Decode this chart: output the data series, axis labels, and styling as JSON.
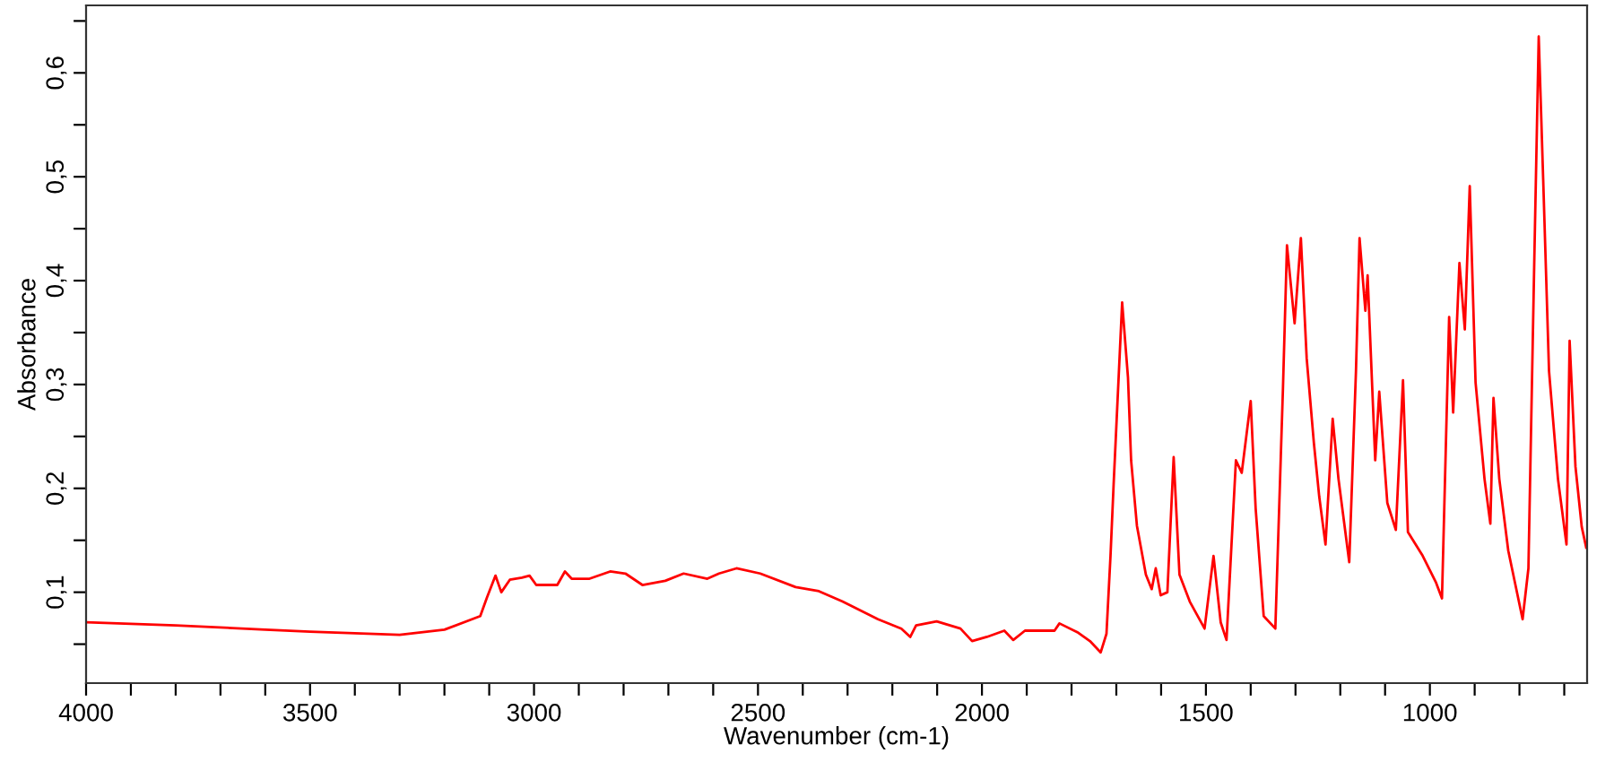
{
  "chart_data": {
    "type": "line",
    "xlabel": "Wavenumber (cm-1)",
    "ylabel": "Absorbance",
    "grid": false,
    "legend": false,
    "marker": "none",
    "line_style": "solid",
    "xlim": [
      4000,
      649
    ],
    "ylim": [
      0.0125,
      0.665
    ],
    "xticks": [
      4000,
      {
        "value": 3900,
        "label": null
      },
      {
        "value": 3800,
        "label": null
      },
      {
        "value": 3700,
        "label": null
      },
      {
        "value": 3600,
        "label": null
      },
      3500,
      {
        "value": 3400,
        "label": null
      },
      {
        "value": 3300,
        "label": null
      },
      {
        "value": 3200,
        "label": null
      },
      {
        "value": 3100,
        "label": null
      },
      3000,
      {
        "value": 2900,
        "label": null
      },
      {
        "value": 2800,
        "label": null
      },
      {
        "value": 2700,
        "label": null
      },
      {
        "value": 2600,
        "label": null
      },
      2500,
      {
        "value": 2400,
        "label": null
      },
      {
        "value": 2300,
        "label": null
      },
      {
        "value": 2200,
        "label": null
      },
      {
        "value": 2100,
        "label": null
      },
      2000,
      {
        "value": 1900,
        "label": null
      },
      {
        "value": 1800,
        "label": null
      },
      {
        "value": 1700,
        "label": null
      },
      {
        "value": 1600,
        "label": null
      },
      1500,
      {
        "value": 1400,
        "label": null
      },
      {
        "value": 1300,
        "label": null
      },
      {
        "value": 1200,
        "label": null
      },
      {
        "value": 1100,
        "label": null
      },
      1000,
      {
        "value": 900,
        "label": null
      },
      {
        "value": 800,
        "label": null
      },
      {
        "value": 700,
        "label": null
      }
    ],
    "yticks": [
      {
        "value": 0.05,
        "label": null
      },
      {
        "value": 0.1,
        "label": "0,1"
      },
      {
        "value": 0.15,
        "label": null
      },
      {
        "value": 0.2,
        "label": "0,2"
      },
      {
        "value": 0.25,
        "label": null
      },
      {
        "value": 0.3,
        "label": "0,3"
      },
      {
        "value": 0.35,
        "label": null
      },
      {
        "value": 0.4,
        "label": "0,4"
      },
      {
        "value": 0.45,
        "label": null
      },
      {
        "value": 0.5,
        "label": "0,5"
      },
      {
        "value": 0.55,
        "label": null
      },
      {
        "value": 0.6,
        "label": "0,6"
      },
      {
        "value": 0.65,
        "label": null
      }
    ],
    "series": [
      {
        "color": "#ff0000",
        "x": [
          4000,
          3800,
          3600,
          3500,
          3300,
          3200,
          3120,
          3105,
          3086,
          3073,
          3054,
          3027,
          3010,
          2995,
          2948,
          2931,
          2916,
          2876,
          2830,
          2796,
          2758,
          2707,
          2666,
          2613,
          2587,
          2548,
          2495,
          2416,
          2364,
          2311,
          2232,
          2180,
          2160,
          2147,
          2101,
          2048,
          2022,
          1989,
          1950,
          1930,
          1904,
          1838,
          1827,
          1785,
          1759,
          1735,
          1722,
          1713,
          1706,
          1687,
          1674,
          1667,
          1654,
          1634,
          1621,
          1612,
          1601,
          1586,
          1572,
          1559,
          1536,
          1503,
          1483,
          1467,
          1454,
          1433,
          1420,
          1400,
          1389,
          1371,
          1345,
          1328,
          1319,
          1302,
          1288,
          1275,
          1259,
          1247,
          1233,
          1217,
          1204,
          1180,
          1165,
          1157,
          1144,
          1139,
          1122,
          1113,
          1095,
          1076,
          1060,
          1049,
          1016,
          986,
          973,
          957,
          948,
          934,
          922,
          911,
          898,
          878,
          865,
          858,
          845,
          825,
          793,
          780,
          767,
          757,
          747,
          734,
          714,
          695,
          688,
          675,
          661,
          651
        ],
        "values": [
          0.071,
          0.068,
          0.064,
          0.062,
          0.059,
          0.064,
          0.077,
          0.095,
          0.116,
          0.1,
          0.112,
          0.114,
          0.116,
          0.107,
          0.107,
          0.12,
          0.113,
          0.113,
          0.12,
          0.118,
          0.107,
          0.111,
          0.118,
          0.113,
          0.118,
          0.123,
          0.118,
          0.105,
          0.101,
          0.091,
          0.074,
          0.065,
          0.057,
          0.068,
          0.072,
          0.065,
          0.053,
          0.057,
          0.063,
          0.054,
          0.063,
          0.063,
          0.07,
          0.061,
          0.053,
          0.042,
          0.06,
          0.135,
          0.204,
          0.379,
          0.307,
          0.227,
          0.164,
          0.117,
          0.103,
          0.123,
          0.097,
          0.1,
          0.23,
          0.117,
          0.091,
          0.065,
          0.135,
          0.071,
          0.054,
          0.227,
          0.215,
          0.284,
          0.181,
          0.077,
          0.065,
          0.296,
          0.434,
          0.359,
          0.441,
          0.325,
          0.244,
          0.192,
          0.146,
          0.267,
          0.209,
          0.129,
          0.313,
          0.441,
          0.371,
          0.405,
          0.227,
          0.293,
          0.186,
          0.16,
          0.304,
          0.158,
          0.135,
          0.109,
          0.094,
          0.365,
          0.273,
          0.417,
          0.353,
          0.491,
          0.302,
          0.209,
          0.166,
          0.287,
          0.209,
          0.14,
          0.074,
          0.123,
          0.417,
          0.635,
          0.497,
          0.313,
          0.209,
          0.146,
          0.342,
          0.221,
          0.163,
          0.143
        ]
      }
    ]
  }
}
